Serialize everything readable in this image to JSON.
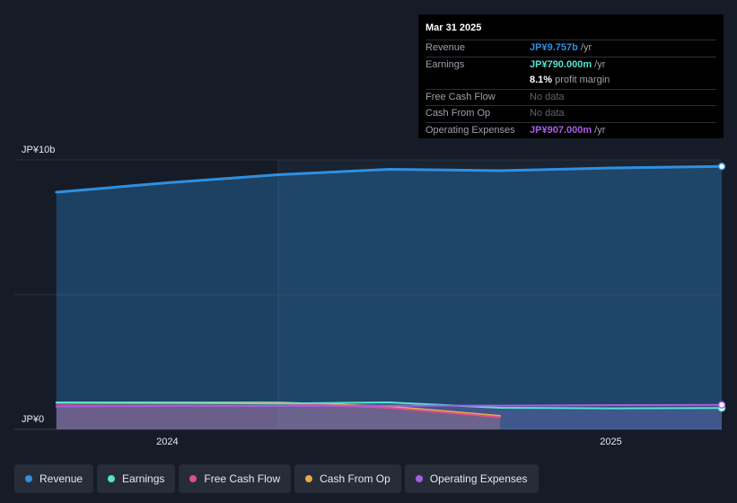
{
  "tooltip": {
    "date": "Mar 31 2025",
    "rows": {
      "revenue": {
        "label": "Revenue",
        "value": "JP¥9.757b",
        "suffix": " /yr"
      },
      "earnings": {
        "label": "Earnings",
        "value": "JP¥790.000m",
        "suffix": " /yr"
      },
      "margin": {
        "value": "8.1%",
        "suffix": " profit margin"
      },
      "fcf": {
        "label": "Free Cash Flow",
        "value": "No data"
      },
      "cfo": {
        "label": "Cash From Op",
        "value": "No data"
      },
      "opex": {
        "label": "Operating Expenses",
        "value": "JP¥907.000m",
        "suffix": " /yr"
      }
    }
  },
  "legend": {
    "revenue": "Revenue",
    "earnings": "Earnings",
    "fcf": "Free Cash Flow",
    "cfo": "Cash From Op",
    "opex": "Operating Expenses"
  },
  "colors": {
    "revenue": "#2f8fe0",
    "earnings": "#54e3cf",
    "fcf": "#d9508a",
    "cfo": "#e8a94e",
    "opex": "#a95ce6"
  },
  "chart_data": {
    "type": "area",
    "title": "",
    "xlabel": "",
    "ylabel": "",
    "y_labels": {
      "top": "JP¥10b",
      "bottom": "JP¥0"
    },
    "ylim": [
      0,
      10
    ],
    "xlim": [
      2023.72,
      2025.25
    ],
    "x_ticks": [
      {
        "value": 2024.0,
        "label": "2024"
      },
      {
        "value": 2025.0,
        "label": "2025"
      }
    ],
    "highlight_start": 2024.25,
    "series": [
      {
        "key": "revenue",
        "name": "Revenue",
        "x": [
          2023.75,
          2024.0,
          2024.25,
          2024.5,
          2024.75,
          2025.0,
          2025.25
        ],
        "values": [
          8.8,
          9.15,
          9.45,
          9.65,
          9.6,
          9.7,
          9.757
        ]
      },
      {
        "key": "earnings",
        "name": "Earnings",
        "x": [
          2023.75,
          2024.0,
          2024.25,
          2024.5,
          2024.75,
          2025.0,
          2025.25
        ],
        "values": [
          1.0,
          0.98,
          0.96,
          1.0,
          0.8,
          0.78,
          0.79
        ]
      },
      {
        "key": "fcf",
        "name": "Free Cash Flow",
        "x": [
          2023.75,
          2024.0,
          2024.25,
          2024.5,
          2024.75
        ],
        "values": [
          0.95,
          0.97,
          0.97,
          0.8,
          0.45
        ]
      },
      {
        "key": "cfo",
        "name": "Cash From Op",
        "x": [
          2023.75,
          2024.0,
          2024.25,
          2024.5,
          2024.75
        ],
        "values": [
          1.0,
          1.0,
          1.0,
          0.85,
          0.5
        ]
      },
      {
        "key": "opex",
        "name": "Operating Expenses",
        "x": [
          2023.75,
          2024.0,
          2024.25,
          2024.5,
          2024.75,
          2025.0,
          2025.25
        ],
        "values": [
          0.85,
          0.87,
          0.87,
          0.88,
          0.88,
          0.9,
          0.907
        ]
      }
    ]
  }
}
